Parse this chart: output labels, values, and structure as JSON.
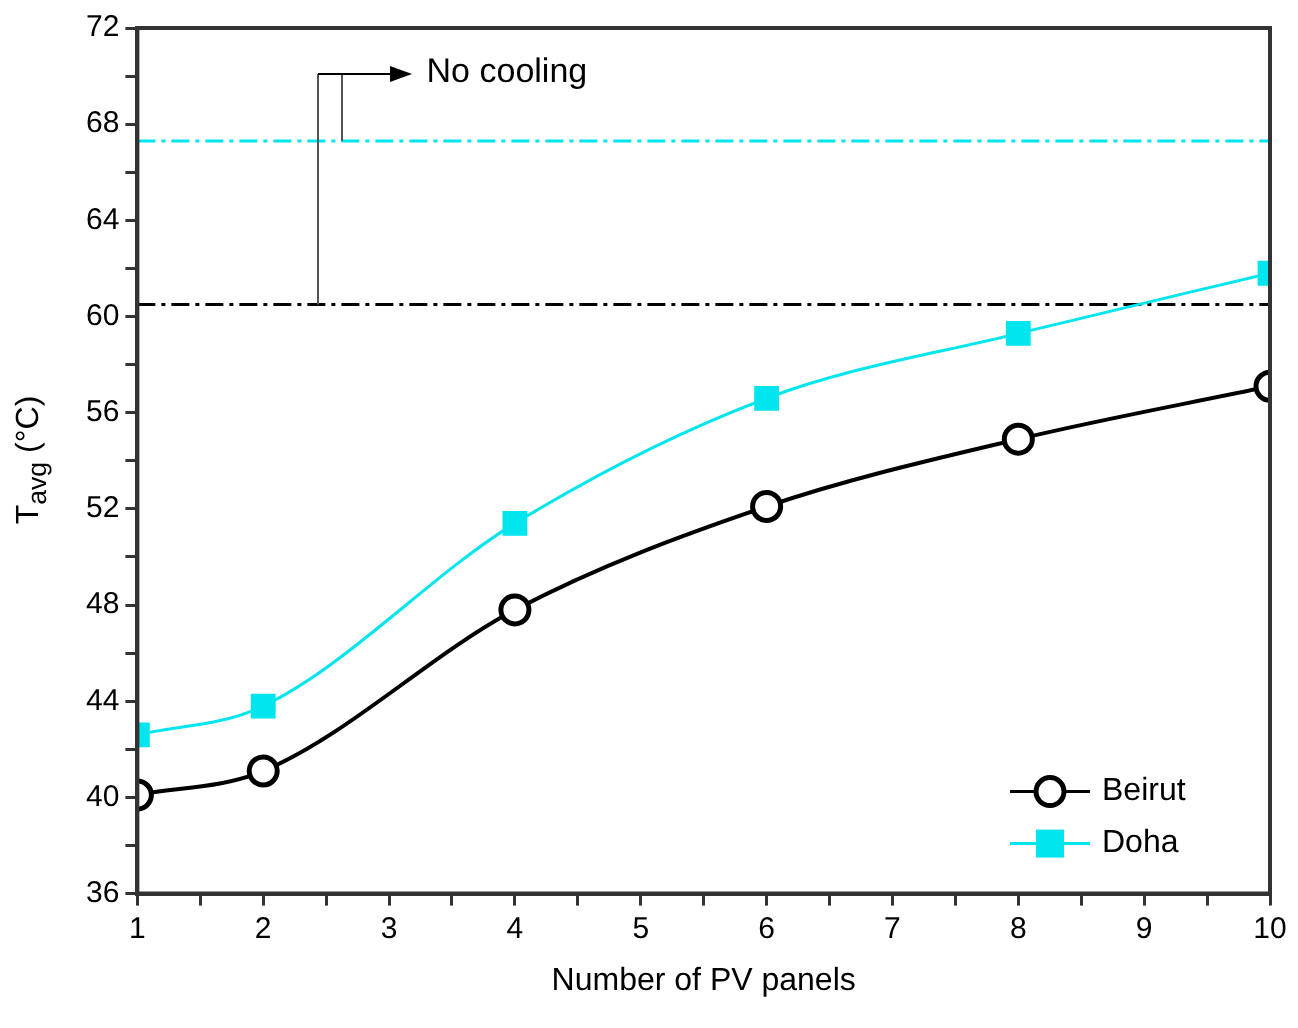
{
  "chart_data": {
    "type": "line",
    "xlabel": "Number of PV panels",
    "ylabel": "T$_{avg}$ (°C)",
    "x": [
      1,
      2,
      4,
      6,
      8,
      10
    ],
    "series": [
      {
        "name": "Beirut",
        "color": "#000000",
        "values": [
          40.1,
          41.1,
          47.8,
          52.1,
          54.9,
          57.1
        ],
        "marker": "circle"
      },
      {
        "name": "Doha",
        "color": "#00e5ee",
        "values": [
          42.6,
          43.8,
          51.4,
          56.6,
          59.3,
          61.8
        ],
        "marker": "square"
      }
    ],
    "xlim": [
      1,
      10
    ],
    "xticks": [
      1,
      {
        "value": 1.5,
        "label": null
      },
      2,
      {
        "value": 2.5,
        "label": null
      },
      3,
      {
        "value": 3.5,
        "label": null
      },
      4,
      {
        "value": 4.5,
        "label": null
      },
      5,
      {
        "value": 5.5,
        "label": null
      },
      6,
      {
        "value": 6.5,
        "label": null
      },
      7,
      {
        "value": 7.5,
        "label": null
      },
      8,
      {
        "value": 8.5,
        "label": null
      },
      9,
      {
        "value": 9.5,
        "label": null
      },
      10
    ],
    "ylim": [
      36,
      72
    ],
    "yticks": [
      36,
      {
        "value": 38,
        "label": null
      },
      40,
      {
        "value": 42,
        "label": null
      },
      44,
      {
        "value": 46,
        "label": null
      },
      48,
      {
        "value": 50,
        "label": null
      },
      52,
      {
        "value": 54,
        "label": null
      },
      56,
      {
        "value": 58,
        "label": null
      },
      60,
      {
        "value": 62,
        "label": null
      },
      64,
      {
        "value": 66,
        "label": null
      },
      68,
      {
        "value": 70,
        "label": null
      },
      72
    ],
    "ref_lines": [
      {
        "axis": "y",
        "value": 60.5,
        "color": "#000000",
        "line_style": "dashed"
      },
      {
        "axis": "y",
        "value": 67.3,
        "color": "#00e5ee",
        "line_style": "dashed"
      }
    ],
    "annotations": [
      "No cooling"
    ],
    "grid": false,
    "legend": "bottom right",
    "line_style": "solid"
  }
}
